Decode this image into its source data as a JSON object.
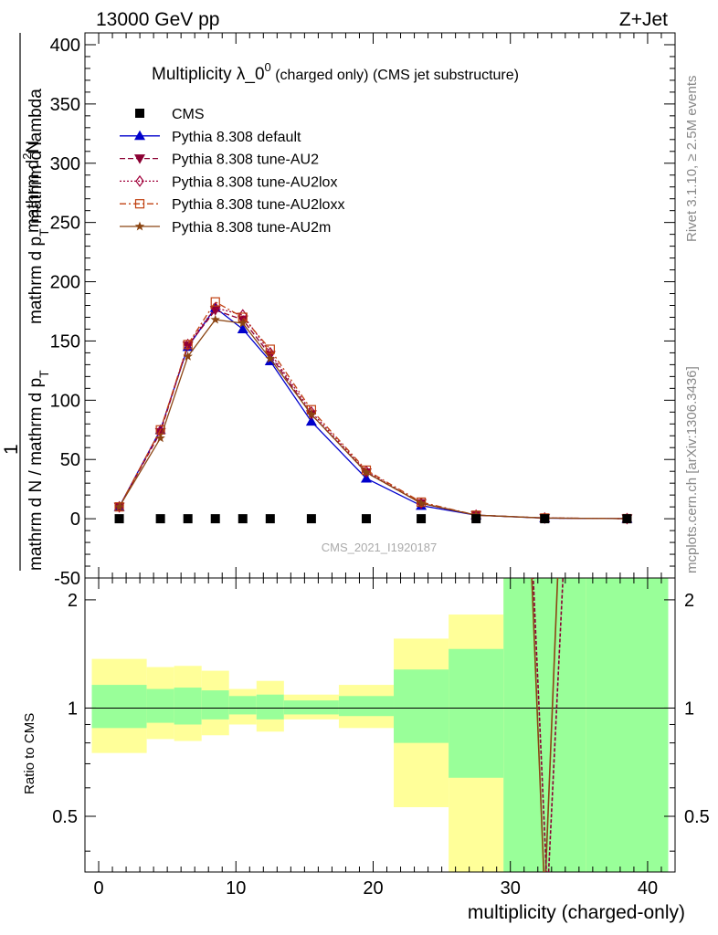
{
  "header": {
    "left": "13000 GeV pp",
    "right": "Z+Jet"
  },
  "title": {
    "main": "Multiplicity λ_0",
    "sup": "0",
    "sub": " (charged only) (CMS jet substructure)"
  },
  "side_labels": {
    "rivet": "Rivet 3.1.10, ≥ 2.5M events",
    "mcplots": "mcplots.cern.ch [arXiv:1306.3436]"
  },
  "watermark": "CMS_2021_I1920187",
  "ylabel_main": {
    "numer_1": "mathrm d",
    "numer_2": "2",
    "numer_3": "N",
    "denom": "mathrm d p",
    "denom_sub": "T",
    "denom_2": " mathrm d lambda",
    "left_one": "1",
    "left_den": "mathrm d N / mathrm d p",
    "left_den_sub": "T"
  },
  "ylabel_ratio": "Ratio to CMS",
  "xlabel": "multiplicity (charged-only)",
  "colors": {
    "cms": "#000000",
    "default": "#0000cc",
    "au2": "#8b0033",
    "au2lox": "#a0003a",
    "au2loxx": "#c04010",
    "au2m": "#8b4513",
    "band_inner": "#99ff99",
    "band_outer": "#ffff99"
  },
  "chart_data": [
    {
      "type": "line",
      "panel": "main",
      "title": "Multiplicity λ_0^0 (charged only) (CMS jet substructure)",
      "xlabel": "",
      "ylabel": "1 / (mathrm d N / mathrm d p_T) mathrm d^2N / (mathrm d p_T mathrm d lambda)",
      "xlim": [
        -1,
        42
      ],
      "ylim": [
        -50,
        410
      ],
      "yticks": [
        -50,
        0,
        50,
        100,
        150,
        200,
        250,
        300,
        350,
        400
      ],
      "xticks": [
        0,
        10,
        20,
        30,
        40
      ],
      "legend_position": "top-left",
      "series": [
        {
          "name": "CMS",
          "marker": "square",
          "x": [
            1.5,
            4.5,
            6.5,
            8.5,
            10.5,
            12.5,
            15.5,
            19.5,
            23.5,
            27.5,
            32.5,
            38.5
          ],
          "y": [
            0,
            0,
            0,
            0,
            0,
            0,
            0,
            0,
            0,
            0,
            0,
            0
          ]
        },
        {
          "name": "Pythia 8.308 default",
          "marker": "triangle-up",
          "dash": "solid",
          "x": [
            1.5,
            4.5,
            6.5,
            8.5,
            10.5,
            12.5,
            15.5,
            19.5,
            23.5,
            27.5,
            32.5,
            38.5
          ],
          "y": [
            10,
            75,
            145,
            178,
            160,
            133,
            82,
            34,
            11,
            3,
            0.5,
            0.1
          ]
        },
        {
          "name": "Pythia 8.308 tune-AU2",
          "marker": "triangle-down",
          "dash": "dashed",
          "x": [
            1.5,
            4.5,
            6.5,
            8.5,
            10.5,
            12.5,
            15.5,
            19.5,
            23.5,
            27.5,
            32.5,
            38.5
          ],
          "y": [
            10,
            73,
            146,
            176,
            168,
            138,
            88,
            39,
            13,
            3,
            0.6,
            0.1
          ]
        },
        {
          "name": "Pythia 8.308 tune-AU2lox",
          "marker": "diamond-open",
          "dash": "dotted",
          "x": [
            1.5,
            4.5,
            6.5,
            8.5,
            10.5,
            12.5,
            15.5,
            19.5,
            23.5,
            27.5,
            32.5,
            38.5
          ],
          "y": [
            10,
            74,
            147,
            178,
            172,
            140,
            90,
            40,
            13,
            3,
            0.6,
            0.1
          ]
        },
        {
          "name": "Pythia 8.308 tune-AU2loxx",
          "marker": "square-open",
          "dash": "dashdot",
          "x": [
            1.5,
            4.5,
            6.5,
            8.5,
            10.5,
            12.5,
            15.5,
            19.5,
            23.5,
            27.5,
            32.5,
            38.5
          ],
          "y": [
            10,
            75,
            147,
            183,
            170,
            143,
            92,
            41,
            14,
            3,
            0.6,
            0.1
          ]
        },
        {
          "name": "Pythia 8.308 tune-AU2m",
          "marker": "star",
          "dash": "solid",
          "x": [
            1.5,
            4.5,
            6.5,
            8.5,
            10.5,
            12.5,
            15.5,
            19.5,
            23.5,
            27.5,
            32.5,
            38.5
          ],
          "y": [
            10,
            68,
            137,
            168,
            165,
            135,
            88,
            39,
            13,
            3,
            0.6,
            0.1
          ]
        }
      ]
    },
    {
      "type": "area",
      "panel": "ratio",
      "xlabel": "multiplicity (charged-only)",
      "ylabel": "Ratio to CMS",
      "xlim": [
        -1,
        42
      ],
      "ylim": [
        0.35,
        2.3
      ],
      "yscale": "log",
      "yticks": [
        0.5,
        1,
        2
      ],
      "xticks": [
        0,
        10,
        20,
        30,
        40
      ],
      "bins": [
        [
          -0.5,
          3.5
        ],
        [
          3.5,
          5.5
        ],
        [
          5.5,
          7.5
        ],
        [
          7.5,
          9.5
        ],
        [
          9.5,
          11.5
        ],
        [
          11.5,
          13.5
        ],
        [
          13.5,
          17.5
        ],
        [
          17.5,
          21.5
        ],
        [
          21.5,
          25.5
        ],
        [
          25.5,
          29.5
        ],
        [
          29.5,
          35.5
        ],
        [
          35.5,
          41.5
        ]
      ],
      "band_inner": [
        [
          0.88,
          1.16
        ],
        [
          0.91,
          1.13
        ],
        [
          0.9,
          1.14
        ],
        [
          0.93,
          1.12
        ],
        [
          0.96,
          1.08
        ],
        [
          0.93,
          1.09
        ],
        [
          0.96,
          1.05
        ],
        [
          0.95,
          1.08
        ],
        [
          0.8,
          1.28
        ],
        [
          0.64,
          1.46
        ],
        [
          0.3,
          2.5
        ],
        [
          0.3,
          2.5
        ]
      ],
      "band_outer": [
        [
          0.75,
          1.37
        ],
        [
          0.82,
          1.3
        ],
        [
          0.81,
          1.31
        ],
        [
          0.84,
          1.27
        ],
        [
          0.9,
          1.13
        ],
        [
          0.86,
          1.19
        ],
        [
          0.93,
          1.09
        ],
        [
          0.88,
          1.16
        ],
        [
          0.53,
          1.56
        ],
        [
          0.3,
          1.82
        ],
        [
          0.3,
          2.5
        ],
        [
          0.3,
          2.5
        ]
      ],
      "series": [
        {
          "name": "Pythia 8.308 tune-AU2m",
          "x": [
            31.5,
            32.5,
            33.5
          ],
          "y": [
            2.6,
            0.3,
            2.6
          ]
        },
        {
          "name": "Pythia 8.308 tune-AU2",
          "x": [
            31.6,
            32.7,
            33.9
          ],
          "y": [
            2.6,
            0.3,
            2.6
          ]
        }
      ]
    }
  ]
}
